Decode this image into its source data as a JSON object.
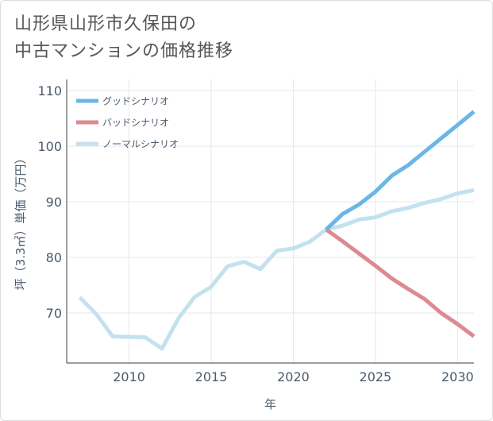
{
  "title_lines": [
    "山形県山形市久保田の",
    "中古マンションの価格推移"
  ],
  "chart_data": {
    "type": "line",
    "xlabel": "年",
    "ylabel": "坪（3.3㎡）単価（万円）",
    "xlim": [
      2006.2,
      2031
    ],
    "ylim": [
      61,
      112
    ],
    "x_ticks": [
      2010,
      2015,
      2020,
      2025,
      2030
    ],
    "y_ticks": [
      70,
      80,
      90,
      100,
      110
    ],
    "grid": true,
    "legend_position": "top-left",
    "series": [
      {
        "name": "グッドシナリオ",
        "color": "#6bb6e8",
        "x": [
          2022,
          2023,
          2024,
          2025,
          2026,
          2027,
          2028,
          2029,
          2030,
          2031
        ],
        "y": [
          85.0,
          87.8,
          89.5,
          91.8,
          94.7,
          96.6,
          99.0,
          101.4,
          103.8,
          106.2
        ]
      },
      {
        "name": "バッドシナリオ",
        "color": "#dc8a92",
        "x": [
          2022,
          2023,
          2024,
          2025,
          2026,
          2027,
          2028,
          2029,
          2030,
          2031
        ],
        "y": [
          85.0,
          82.9,
          80.7,
          78.5,
          76.2,
          74.3,
          72.5,
          70.0,
          68.0,
          65.8
        ]
      },
      {
        "name": "ノーマルシナリオ",
        "color": "#c4e1ef",
        "x": [
          2007,
          2008,
          2009,
          2010,
          2011,
          2012,
          2013,
          2014,
          2015,
          2016,
          2017,
          2018,
          2019,
          2020,
          2021,
          2022,
          2023,
          2024,
          2025,
          2026,
          2027,
          2028,
          2029,
          2030,
          2031
        ],
        "y": [
          72.8,
          69.8,
          65.8,
          65.7,
          65.6,
          63.6,
          69.0,
          72.9,
          74.7,
          78.4,
          79.2,
          77.9,
          81.2,
          81.6,
          82.8,
          85.0,
          85.7,
          86.8,
          87.2,
          88.3,
          88.9,
          89.8,
          90.5,
          91.5,
          92.1
        ]
      }
    ]
  }
}
